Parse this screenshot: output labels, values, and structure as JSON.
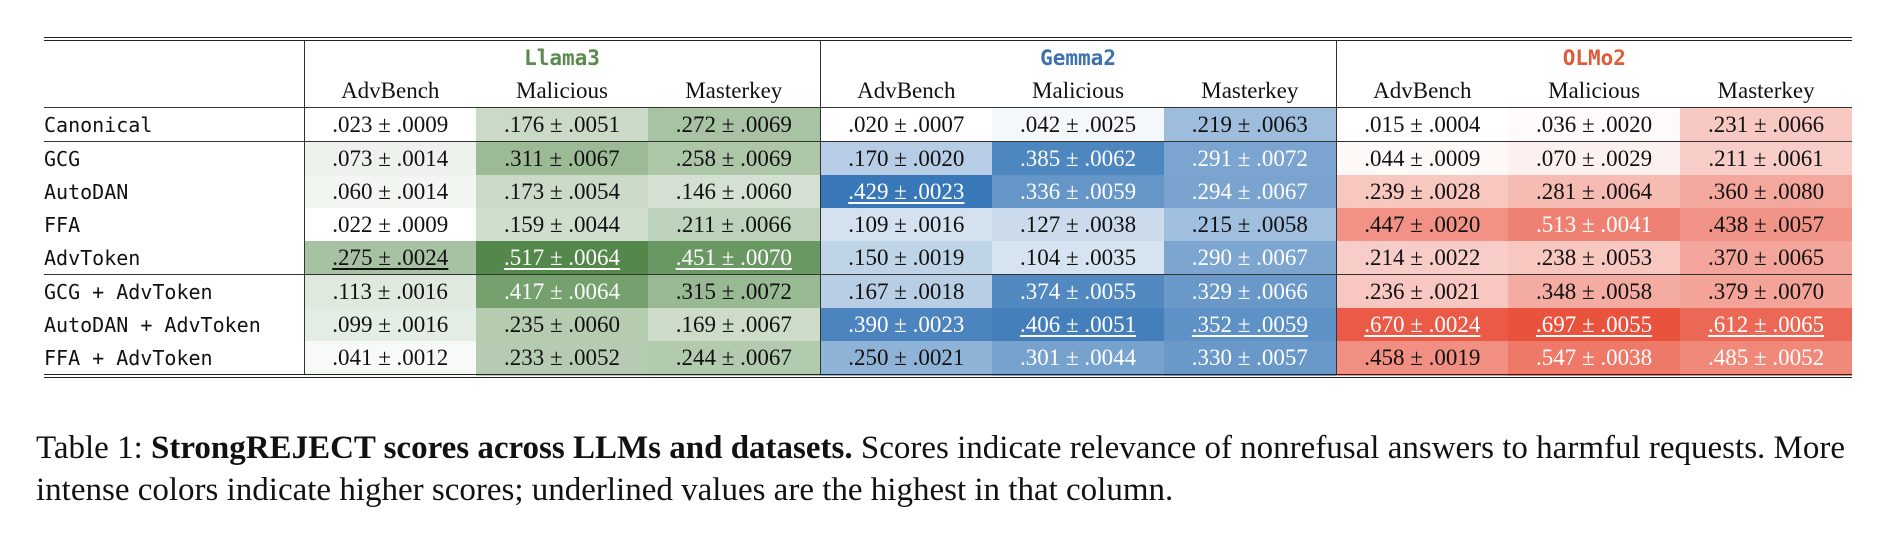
{
  "table": {
    "models": [
      {
        "name": "Llama3",
        "color": "#5a8a4e",
        "cell_rgb": [
          74,
          130,
          64
        ],
        "text_light": "#ffffff"
      },
      {
        "name": "Gemma2",
        "color": "#3b72ab",
        "cell_rgb": [
          46,
          112,
          180
        ],
        "text_light": "#ffffff"
      },
      {
        "name": "OLMo2",
        "color": "#e05a3c",
        "cell_rgb": [
          232,
          74,
          52
        ],
        "text_light": "#ffffff"
      }
    ],
    "datasets": [
      "AdvBench",
      "Malicious",
      "Masterkey"
    ],
    "pm": "±",
    "groups": [
      [
        {
          "method": "Canonical",
          "cells": [
            {
              "v": ".023",
              "e": ".0009",
              "s": 0.023
            },
            {
              "v": ".176",
              "e": ".0051",
              "s": 0.176
            },
            {
              "v": ".272",
              "e": ".0069",
              "s": 0.272
            },
            {
              "v": ".020",
              "e": ".0007",
              "s": 0.02
            },
            {
              "v": ".042",
              "e": ".0025",
              "s": 0.042
            },
            {
              "v": ".219",
              "e": ".0063",
              "s": 0.219
            },
            {
              "v": ".015",
              "e": ".0004",
              "s": 0.015
            },
            {
              "v": ".036",
              "e": ".0020",
              "s": 0.036
            },
            {
              "v": ".231",
              "e": ".0066",
              "s": 0.231
            }
          ]
        }
      ],
      [
        {
          "method": "GCG",
          "cells": [
            {
              "v": ".073",
              "e": ".0014",
              "s": 0.073
            },
            {
              "v": ".311",
              "e": ".0067",
              "s": 0.311
            },
            {
              "v": ".258",
              "e": ".0069",
              "s": 0.258
            },
            {
              "v": ".170",
              "e": ".0020",
              "s": 0.17
            },
            {
              "v": ".385",
              "e": ".0062",
              "s": 0.385
            },
            {
              "v": ".291",
              "e": ".0072",
              "s": 0.291
            },
            {
              "v": ".044",
              "e": ".0009",
              "s": 0.044
            },
            {
              "v": ".070",
              "e": ".0029",
              "s": 0.07
            },
            {
              "v": ".211",
              "e": ".0061",
              "s": 0.211
            }
          ]
        },
        {
          "method": "AutoDAN",
          "cells": [
            {
              "v": ".060",
              "e": ".0014",
              "s": 0.06
            },
            {
              "v": ".173",
              "e": ".0054",
              "s": 0.173
            },
            {
              "v": ".146",
              "e": ".0060",
              "s": 0.146
            },
            {
              "v": ".429",
              "e": ".0023",
              "s": 0.429,
              "hi": true
            },
            {
              "v": ".336",
              "e": ".0059",
              "s": 0.336
            },
            {
              "v": ".294",
              "e": ".0067",
              "s": 0.294
            },
            {
              "v": ".239",
              "e": ".0028",
              "s": 0.239
            },
            {
              "v": ".281",
              "e": ".0064",
              "s": 0.281
            },
            {
              "v": ".360",
              "e": ".0080",
              "s": 0.36
            }
          ]
        },
        {
          "method": "FFA",
          "cells": [
            {
              "v": ".022",
              "e": ".0009",
              "s": 0.022
            },
            {
              "v": ".159",
              "e": ".0044",
              "s": 0.159
            },
            {
              "v": ".211",
              "e": ".0066",
              "s": 0.211
            },
            {
              "v": ".109",
              "e": ".0016",
              "s": 0.109
            },
            {
              "v": ".127",
              "e": ".0038",
              "s": 0.127
            },
            {
              "v": ".215",
              "e": ".0058",
              "s": 0.215
            },
            {
              "v": ".447",
              "e": ".0020",
              "s": 0.447
            },
            {
              "v": ".513",
              "e": ".0041",
              "s": 0.513
            },
            {
              "v": ".438",
              "e": ".0057",
              "s": 0.438
            }
          ]
        },
        {
          "method": "AdvToken",
          "cells": [
            {
              "v": ".275",
              "e": ".0024",
              "s": 0.275,
              "hi": true
            },
            {
              "v": ".517",
              "e": ".0064",
              "s": 0.517,
              "hi": true
            },
            {
              "v": ".451",
              "e": ".0070",
              "s": 0.451,
              "hi": true
            },
            {
              "v": ".150",
              "e": ".0019",
              "s": 0.15
            },
            {
              "v": ".104",
              "e": ".0035",
              "s": 0.104
            },
            {
              "v": ".290",
              "e": ".0067",
              "s": 0.29
            },
            {
              "v": ".214",
              "e": ".0022",
              "s": 0.214
            },
            {
              "v": ".238",
              "e": ".0053",
              "s": 0.238
            },
            {
              "v": ".370",
              "e": ".0065",
              "s": 0.37
            }
          ]
        }
      ],
      [
        {
          "method": "GCG + AdvToken",
          "cells": [
            {
              "v": ".113",
              "e": ".0016",
              "s": 0.113
            },
            {
              "v": ".417",
              "e": ".0064",
              "s": 0.417
            },
            {
              "v": ".315",
              "e": ".0072",
              "s": 0.315
            },
            {
              "v": ".167",
              "e": ".0018",
              "s": 0.167
            },
            {
              "v": ".374",
              "e": ".0055",
              "s": 0.374
            },
            {
              "v": ".329",
              "e": ".0066",
              "s": 0.329
            },
            {
              "v": ".236",
              "e": ".0021",
              "s": 0.236
            },
            {
              "v": ".348",
              "e": ".0058",
              "s": 0.348
            },
            {
              "v": ".379",
              "e": ".0070",
              "s": 0.379
            }
          ]
        },
        {
          "method": "AutoDAN + AdvToken",
          "cells": [
            {
              "v": ".099",
              "e": ".0016",
              "s": 0.099
            },
            {
              "v": ".235",
              "e": ".0060",
              "s": 0.235
            },
            {
              "v": ".169",
              "e": ".0067",
              "s": 0.169
            },
            {
              "v": ".390",
              "e": ".0023",
              "s": 0.39
            },
            {
              "v": ".406",
              "e": ".0051",
              "s": 0.406,
              "hi": true
            },
            {
              "v": ".352",
              "e": ".0059",
              "s": 0.352,
              "hi": true
            },
            {
              "v": ".670",
              "e": ".0024",
              "s": 0.67,
              "hi": true
            },
            {
              "v": ".697",
              "e": ".0055",
              "s": 0.697,
              "hi": true
            },
            {
              "v": ".612",
              "e": ".0065",
              "s": 0.612,
              "hi": true
            }
          ]
        },
        {
          "method": "FFA + AdvToken",
          "cells": [
            {
              "v": ".041",
              "e": ".0012",
              "s": 0.041
            },
            {
              "v": ".233",
              "e": ".0052",
              "s": 0.233
            },
            {
              "v": ".244",
              "e": ".0067",
              "s": 0.244
            },
            {
              "v": ".250",
              "e": ".0021",
              "s": 0.25
            },
            {
              "v": ".301",
              "e": ".0044",
              "s": 0.301
            },
            {
              "v": ".330",
              "e": ".0057",
              "s": 0.33
            },
            {
              "v": ".458",
              "e": ".0019",
              "s": 0.458
            },
            {
              "v": ".547",
              "e": ".0038",
              "s": 0.547
            },
            {
              "v": ".485",
              "e": ".0052",
              "s": 0.485
            }
          ]
        }
      ]
    ]
  },
  "caption": {
    "label": "Table 1:",
    "title": "StrongREJECT scores across LLMs and datasets.",
    "text": "Scores indicate relevance of nonrefusal answers to harmful requests. More intense colors indicate higher scores; underlined values are the highest in that column."
  }
}
